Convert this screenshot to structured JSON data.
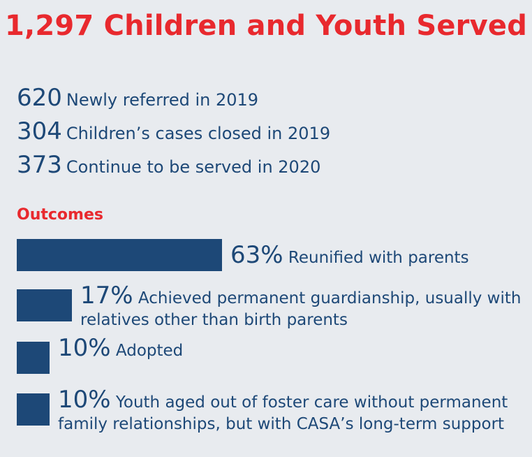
{
  "title": "1,297 Children and Youth Served",
  "stats": [
    {
      "number": "620",
      "label": "Newly referred in 2019"
    },
    {
      "number": "304",
      "label": "Children’s cases closed in 2019"
    },
    {
      "number": "373",
      "label": "Continue to be served in 2020"
    }
  ],
  "outcomes_heading": "Outcomes",
  "colors": {
    "accent": "#e8292e",
    "bar": "#1d4877",
    "text": "#1d4877",
    "background": "#e8ebef"
  },
  "chart_data": {
    "type": "bar",
    "orientation": "horizontal",
    "title": "Outcomes",
    "categories": [
      "Reunified with parents",
      "Achieved permanent guardianship, usually with relatives other than birth parents",
      "Adopted",
      "Youth aged out of foster care without permanent family relationships, but with CASA’s long-term support"
    ],
    "values": [
      63,
      17,
      10,
      10
    ],
    "value_labels": [
      "63%",
      "17%",
      "10%",
      "10%"
    ],
    "label_lines": [
      [
        "Reunified with parents"
      ],
      [
        "Achieved permanent guardianship, usually with",
        "relatives other than birth parents"
      ],
      [
        "Adopted"
      ],
      [
        "Youth aged out of foster care without permanent",
        "family relationships, but with CASA’s long-term support"
      ]
    ],
    "unit": "%",
    "grid": false
  }
}
